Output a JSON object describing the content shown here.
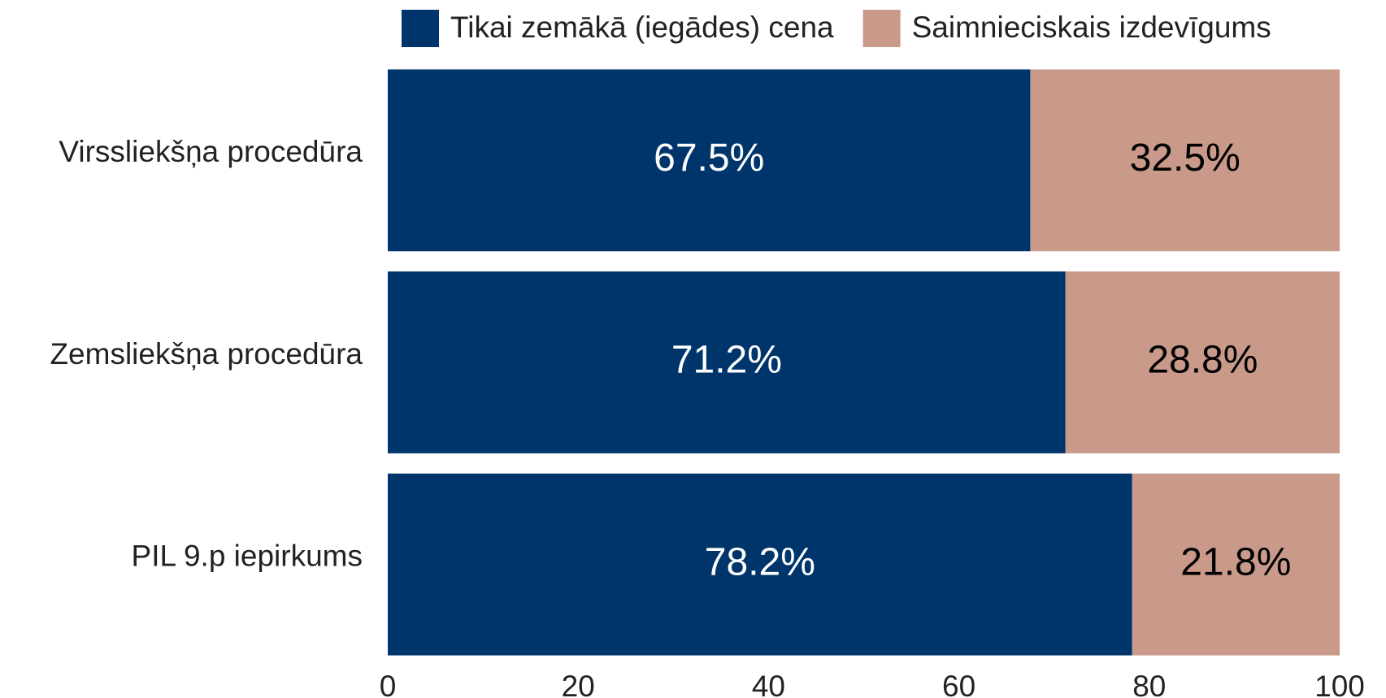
{
  "chart_data": {
    "type": "stacked-barh",
    "categories": [
      "Virssliekšņa procedūra",
      "Zemsliekšņa procedūra",
      "PIL 9.p iepirkums"
    ],
    "series": [
      {
        "name": "Tikai zemākā (iegādes) cena",
        "color": "#00356b",
        "label_color": "#ffffff",
        "values": [
          67.5,
          71.2,
          78.2
        ],
        "value_labels": [
          "67.5%",
          "71.2%",
          "78.2%"
        ]
      },
      {
        "name": "Saimnieciskais izdevīgums",
        "color": "#c9998a",
        "label_color": "#000000",
        "values": [
          32.5,
          28.8,
          21.8
        ],
        "value_labels": [
          "32.5%",
          "28.8%",
          "21.8%"
        ]
      }
    ],
    "xlim": [
      0,
      100
    ],
    "xticks": [
      0,
      20,
      40,
      60,
      80,
      100
    ],
    "grid": false,
    "legend": "top"
  }
}
